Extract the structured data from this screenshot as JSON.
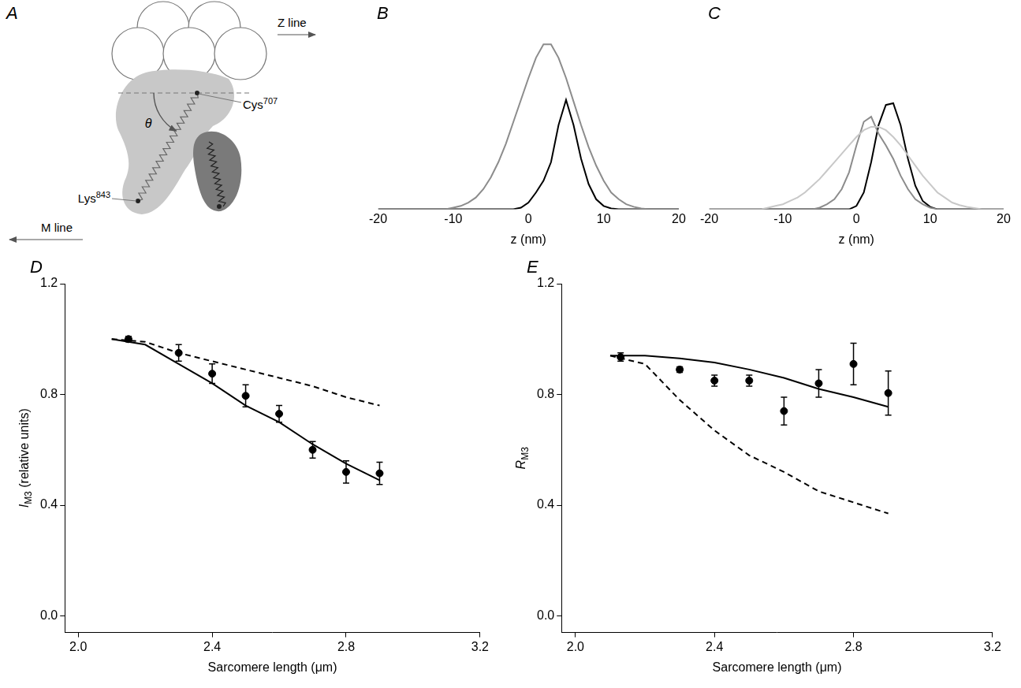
{
  "diagram": {
    "panel": "A",
    "z_line": "Z line",
    "m_line": "M line",
    "angle": "θ",
    "labels": [
      {
        "text": "Cys",
        "superscript": "707"
      },
      {
        "text": "Lys",
        "superscript": "843"
      }
    ]
  },
  "chart_data": [
    {
      "panel": "B",
      "type": "line",
      "x_label": "z (nm)",
      "x": [
        -20,
        -19,
        -18,
        -17,
        -16,
        -15,
        -14,
        -13,
        -12,
        -11,
        -10,
        -9,
        -8,
        -7,
        -6,
        -5,
        -4,
        -3,
        -2,
        -1,
        0,
        1,
        2,
        3,
        4,
        5,
        6,
        7,
        8,
        9,
        10,
        11,
        12,
        13,
        14,
        15,
        16,
        17,
        18,
        19,
        20
      ],
      "series": [
        {
          "color": "#8c8c8c",
          "values": [
            0,
            0,
            0,
            0,
            0,
            0,
            0,
            0,
            0,
            0,
            0.01,
            0.02,
            0.04,
            0.07,
            0.12,
            0.19,
            0.28,
            0.39,
            0.52,
            0.65,
            0.78,
            0.9,
            0.98,
            0.98,
            0.9,
            0.78,
            0.64,
            0.5,
            0.37,
            0.26,
            0.17,
            0.1,
            0.06,
            0.03,
            0.015,
            0.005,
            0,
            0,
            0,
            0,
            0
          ]
        },
        {
          "color": "#000000",
          "values": [
            0,
            0,
            0,
            0,
            0,
            0,
            0,
            0,
            0,
            0,
            0,
            0,
            0,
            0,
            0,
            0,
            0,
            0,
            0,
            0.01,
            0.04,
            0.1,
            0.17,
            0.28,
            0.5,
            0.65,
            0.5,
            0.3,
            0.15,
            0.06,
            0.02,
            0.005,
            0,
            0,
            0,
            0,
            0,
            0,
            0,
            0,
            0
          ]
        }
      ],
      "xlim": [
        -20,
        20
      ],
      "xticks": [
        -20,
        -10,
        0,
        10,
        20
      ],
      "ylim": [
        0,
        1
      ],
      "yticks": [],
      "grid": false,
      "tick_labels": "x"
    },
    {
      "panel": "C",
      "type": "line",
      "x_label": "z (nm)",
      "x": [
        -20,
        -19,
        -18,
        -17,
        -16,
        -15,
        -14,
        -13,
        -12,
        -11,
        -10,
        -9,
        -8,
        -7,
        -6,
        -5,
        -4,
        -3,
        -2,
        -1,
        0,
        1,
        2,
        3,
        4,
        5,
        6,
        7,
        8,
        9,
        10,
        11,
        12,
        13,
        14,
        15,
        16,
        17,
        18,
        19,
        20
      ],
      "series": [
        {
          "color": "#c8c8c8",
          "values": [
            0,
            0,
            0,
            0,
            0,
            0,
            0,
            0,
            0.01,
            0.02,
            0.03,
            0.05,
            0.07,
            0.1,
            0.14,
            0.18,
            0.23,
            0.28,
            0.33,
            0.38,
            0.43,
            0.47,
            0.49,
            0.49,
            0.47,
            0.43,
            0.38,
            0.32,
            0.26,
            0.2,
            0.15,
            0.1,
            0.07,
            0.04,
            0.025,
            0.015,
            0.008,
            0,
            0,
            0,
            0
          ]
        },
        {
          "color": "#8c8c8c",
          "values": [
            0,
            0,
            0,
            0,
            0,
            0,
            0,
            0,
            0,
            0,
            0,
            0,
            0,
            0,
            0,
            0.01,
            0.03,
            0.06,
            0.12,
            0.22,
            0.38,
            0.52,
            0.55,
            0.45,
            0.38,
            0.3,
            0.2,
            0.12,
            0.06,
            0.03,
            0.01,
            0,
            0,
            0,
            0,
            0,
            0,
            0,
            0,
            0,
            0
          ]
        },
        {
          "color": "#000000",
          "values": [
            0,
            0,
            0,
            0,
            0,
            0,
            0,
            0,
            0,
            0,
            0,
            0,
            0,
            0,
            0,
            0,
            0,
            0,
            0,
            0,
            0.02,
            0.1,
            0.28,
            0.5,
            0.62,
            0.63,
            0.5,
            0.3,
            0.14,
            0.05,
            0.015,
            0,
            0,
            0,
            0,
            0,
            0,
            0,
            0,
            0,
            0
          ]
        }
      ],
      "xlim": [
        -20,
        20
      ],
      "xticks": [
        -20,
        -10,
        0,
        10,
        20
      ],
      "ylim": [
        0,
        1
      ],
      "yticks": [],
      "grid": false,
      "tick_labels": "x"
    },
    {
      "panel": "D",
      "type": "scatter",
      "x_label": "Sarcomere length (μm)",
      "y_label": {
        "text": "I",
        "subscript": "M3",
        "after": " (relative units)"
      },
      "series": [
        {
          "type": "scatter",
          "marker": "circle",
          "color": "#000000",
          "x": [
            2.15,
            2.3,
            2.4,
            2.5,
            2.6,
            2.7,
            2.8,
            2.9
          ],
          "values": [
            1.0,
            0.95,
            0.875,
            0.795,
            0.73,
            0.6,
            0.52,
            0.515
          ],
          "error": [
            0.01,
            0.03,
            0.035,
            0.04,
            0.03,
            0.03,
            0.04,
            0.04
          ]
        },
        {
          "type": "line",
          "line_style": "solid",
          "color": "#000000",
          "x": [
            2.1,
            2.2,
            2.3,
            2.4,
            2.5,
            2.6,
            2.7,
            2.8,
            2.9
          ],
          "values": [
            1.0,
            0.98,
            0.91,
            0.84,
            0.76,
            0.7,
            0.62,
            0.55,
            0.49
          ]
        },
        {
          "type": "line",
          "line_style": "dashed",
          "color": "#000000",
          "x": [
            2.1,
            2.2,
            2.3,
            2.4,
            2.5,
            2.6,
            2.7,
            2.8,
            2.9
          ],
          "values": [
            1.0,
            0.99,
            0.95,
            0.92,
            0.89,
            0.86,
            0.83,
            0.79,
            0.76
          ]
        }
      ],
      "xlim": [
        1.96,
        3.2
      ],
      "xticks": [
        {
          "value": 2,
          "label": "2.0"
        },
        2.4,
        2.8,
        3.2
      ],
      "ylim": [
        -0.06,
        1.2
      ],
      "yticks": [
        {
          "value": 0,
          "label": "0.0"
        },
        0.4,
        0.8,
        1.2
      ],
      "grid": false
    },
    {
      "panel": "E",
      "type": "scatter",
      "x_label": "Sarcomere length (μm)",
      "y_label": {
        "text": "R",
        "subscript": "M3",
        "after": ""
      },
      "series": [
        {
          "type": "scatter",
          "marker": "circle",
          "color": "#000000",
          "x": [
            2.13,
            2.3,
            2.4,
            2.5,
            2.6,
            2.7,
            2.8,
            2.9
          ],
          "values": [
            0.935,
            0.89,
            0.85,
            0.85,
            0.74,
            0.84,
            0.91,
            0.805
          ],
          "error": [
            0.015,
            0.01,
            0.02,
            0.02,
            0.05,
            0.05,
            0.075,
            0.08
          ]
        },
        {
          "type": "line",
          "line_style": "solid",
          "color": "#000000",
          "x": [
            2.1,
            2.2,
            2.3,
            2.4,
            2.5,
            2.6,
            2.7,
            2.8,
            2.9
          ],
          "values": [
            0.94,
            0.94,
            0.93,
            0.915,
            0.89,
            0.86,
            0.82,
            0.79,
            0.755
          ]
        },
        {
          "type": "line",
          "line_style": "dashed",
          "color": "#000000",
          "x": [
            2.1,
            2.2,
            2.3,
            2.4,
            2.5,
            2.6,
            2.7,
            2.8,
            2.9
          ],
          "values": [
            0.94,
            0.91,
            0.78,
            0.67,
            0.58,
            0.52,
            0.45,
            0.41,
            0.37
          ]
        }
      ],
      "xlim": [
        1.96,
        3.2
      ],
      "xticks": [
        {
          "value": 2,
          "label": "2.0"
        },
        2.4,
        2.8,
        3.2
      ],
      "ylim": [
        -0.06,
        1.2
      ],
      "yticks": [
        {
          "value": 0,
          "label": "0.0"
        },
        0.4,
        0.8,
        1.2
      ],
      "grid": false
    }
  ]
}
